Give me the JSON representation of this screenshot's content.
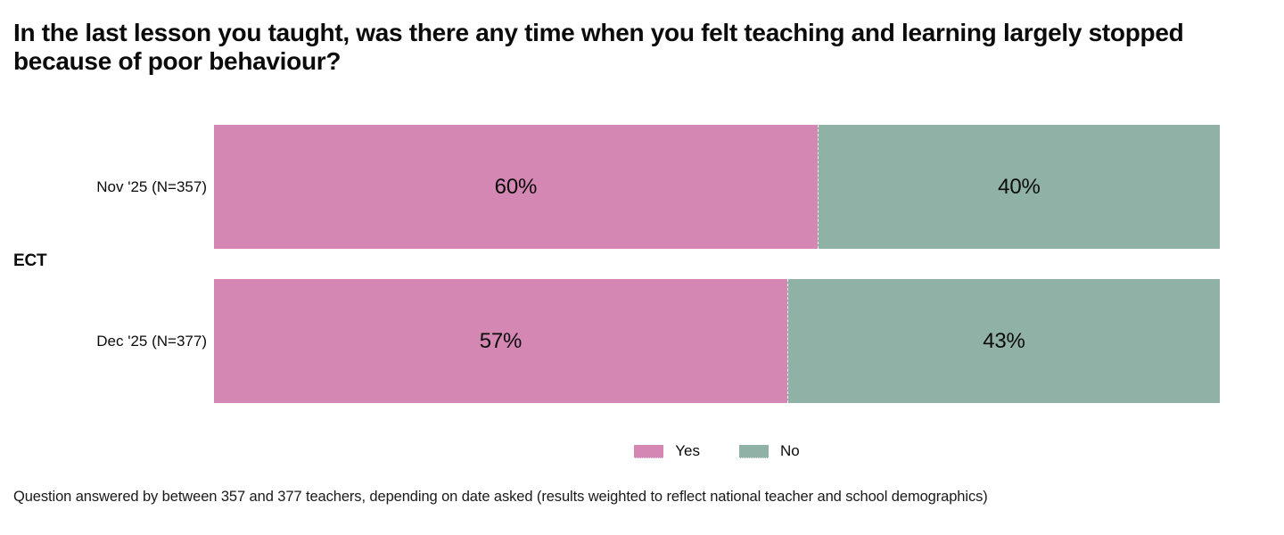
{
  "title": "In the last lesson you taught, was there any time when you felt teaching and learning largely stopped because of poor behaviour?",
  "group_label": "ECT",
  "colors": {
    "yes": "#d487b2",
    "no": "#90b1a5",
    "text": "#0b0b0b",
    "background": "#ffffff"
  },
  "legend": {
    "yes_label": "Yes",
    "no_label": "No",
    "position": "bottom-center"
  },
  "footnote": "Question answered by between 357 and 377 teachers, depending on date asked (results weighted to reflect national teacher and school demographics)",
  "rows": [
    {
      "label": "Nov '25 (N=357)",
      "yes": 60,
      "no": 40,
      "yes_label": "60%",
      "no_label": "40%"
    },
    {
      "label": "Dec '25 (N=377)",
      "yes": 57,
      "no": 43,
      "yes_label": "57%",
      "no_label": "43%"
    }
  ],
  "chart_data": {
    "type": "bar",
    "orientation": "horizontal",
    "stacked": true,
    "title": "In the last lesson you taught, was there any time when you felt teaching and learning largely stopped because of poor behaviour?",
    "group_label": "ECT",
    "categories": [
      "Nov '25 (N=357)",
      "Dec '25 (N=377)"
    ],
    "series": [
      {
        "name": "Yes",
        "values": [
          60,
          57
        ],
        "color": "#d487b2"
      },
      {
        "name": "No",
        "values": [
          40,
          43
        ],
        "color": "#90b1a5"
      }
    ],
    "value_format": "percent",
    "xlim": [
      0,
      100
    ],
    "grid": false,
    "legend_position": "bottom-center",
    "data_labels": true,
    "footnote": "Question answered by between 357 and 377 teachers, depending on date asked (results weighted to reflect national teacher and school demographics)"
  }
}
